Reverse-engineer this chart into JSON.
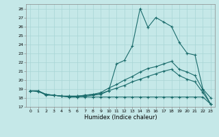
{
  "xlabel": "Humidex (Indice chaleur)",
  "xlim": [
    -0.5,
    23.5
  ],
  "ylim": [
    17,
    28.5
  ],
  "xticks": [
    0,
    1,
    2,
    3,
    4,
    5,
    6,
    7,
    8,
    9,
    10,
    11,
    12,
    13,
    14,
    15,
    16,
    17,
    18,
    19,
    20,
    21,
    22,
    23
  ],
  "yticks": [
    17,
    18,
    19,
    20,
    21,
    22,
    23,
    24,
    25,
    26,
    27,
    28
  ],
  "background_color": "#c5e8e8",
  "grid_color": "#a8d5d5",
  "line_color": "#1a6b6b",
  "lines": {
    "top": {
      "x": [
        0,
        1,
        2,
        3,
        4,
        5,
        6,
        7,
        8,
        9,
        10,
        11,
        12,
        13,
        14,
        15,
        16,
        17,
        18,
        19,
        20,
        21,
        22,
        23
      ],
      "y": [
        18.8,
        18.8,
        18.3,
        18.3,
        18.2,
        18.1,
        18.1,
        18.2,
        18.3,
        18.4,
        18.8,
        21.8,
        22.2,
        23.8,
        28.0,
        25.9,
        27.0,
        26.5,
        26.0,
        24.2,
        23.0,
        22.8,
        19.0,
        18.0
      ]
    },
    "mid_upper": {
      "x": [
        0,
        1,
        2,
        3,
        4,
        5,
        6,
        7,
        8,
        9,
        10,
        11,
        12,
        13,
        14,
        15,
        16,
        17,
        18,
        19,
        20,
        21,
        22,
        23
      ],
      "y": [
        18.8,
        18.8,
        18.4,
        18.3,
        18.2,
        18.2,
        18.2,
        18.3,
        18.4,
        18.6,
        19.1,
        19.5,
        20.0,
        20.4,
        20.9,
        21.3,
        21.5,
        21.8,
        22.1,
        21.2,
        20.9,
        20.5,
        18.9,
        17.3
      ]
    },
    "mid_lower": {
      "x": [
        0,
        1,
        2,
        3,
        4,
        5,
        6,
        7,
        8,
        9,
        10,
        11,
        12,
        13,
        14,
        15,
        16,
        17,
        18,
        19,
        20,
        21,
        22,
        23
      ],
      "y": [
        18.8,
        18.8,
        18.4,
        18.3,
        18.2,
        18.2,
        18.2,
        18.3,
        18.4,
        18.5,
        18.8,
        19.1,
        19.4,
        19.8,
        20.1,
        20.4,
        20.7,
        21.0,
        21.2,
        20.5,
        20.1,
        19.8,
        18.6,
        17.3
      ]
    },
    "bottom": {
      "x": [
        0,
        1,
        2,
        3,
        4,
        5,
        6,
        7,
        8,
        9,
        10,
        11,
        12,
        13,
        14,
        15,
        16,
        17,
        18,
        19,
        20,
        21,
        22,
        23
      ],
      "y": [
        18.8,
        18.7,
        18.4,
        18.3,
        18.2,
        18.1,
        18.1,
        18.1,
        18.1,
        18.1,
        18.1,
        18.1,
        18.1,
        18.1,
        18.1,
        18.1,
        18.1,
        18.1,
        18.1,
        18.1,
        18.1,
        18.1,
        18.1,
        17.3
      ]
    }
  }
}
